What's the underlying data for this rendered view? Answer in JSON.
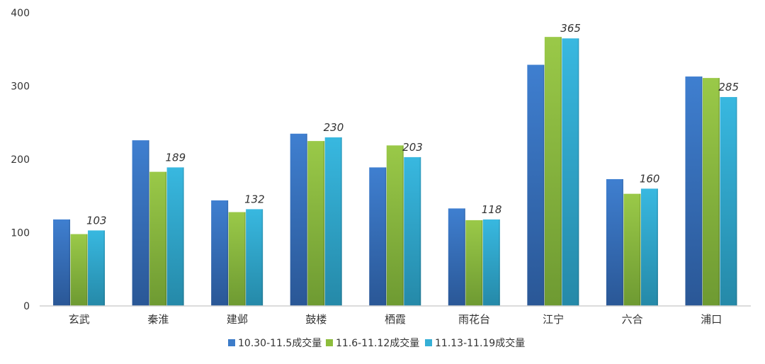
{
  "chart_data": {
    "type": "bar",
    "title": "",
    "xlabel": "",
    "ylabel": "",
    "ylim": [
      0,
      400
    ],
    "yticks": [
      "0",
      "100",
      "200",
      "300",
      "400"
    ],
    "categories": [
      "玄武",
      "秦淮",
      "建邺",
      "鼓楼",
      "栖霞",
      "雨花台",
      "江宁",
      "六合",
      "浦口"
    ],
    "series": [
      {
        "name": "10.30-11.5成交量",
        "color": "#3d7cc9",
        "values": [
          118,
          226,
          144,
          235,
          189,
          133,
          329,
          173,
          313
        ]
      },
      {
        "name": "11.6-11.12成交量",
        "color": "#8dbd3c",
        "values": [
          98,
          183,
          128,
          225,
          219,
          117,
          367,
          153,
          311
        ]
      },
      {
        "name": "11.13-11.19成交量",
        "color": "#36b0d6",
        "values": [
          103,
          189,
          132,
          230,
          203,
          118,
          365,
          160,
          285
        ]
      }
    ],
    "data_labels": {
      "series_index": 2,
      "values": [
        "103",
        "189",
        "132",
        "230",
        "203",
        "118",
        "365",
        "160",
        "285"
      ]
    },
    "legend_position": "bottom",
    "grid": false
  }
}
